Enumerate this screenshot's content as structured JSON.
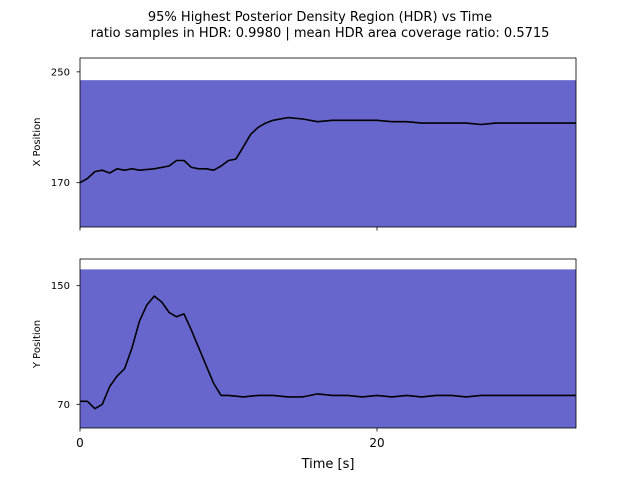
{
  "figure": {
    "title_line1": "95% Highest Posterior Density Region (HDR) vs Time",
    "title_line2": "ratio samples in HDR: 0.9980 | mean HDR area coverage ratio: 0.5715"
  },
  "colors": {
    "hdr_fill": "#6666cc",
    "trajectory": "#000000"
  },
  "chart_data": [
    {
      "type": "area",
      "panel": "top",
      "ylabel": "X Position",
      "xlim": [
        0,
        33.4
      ],
      "ylim": [
        138,
        260
      ],
      "yticks": [
        170,
        250
      ],
      "xticks": [
        0,
        20
      ],
      "hdr_band": {
        "x": [
          0,
          33.4
        ],
        "lower": 138,
        "upper": 244
      },
      "series": [
        {
          "x": [
            0,
            0.5,
            1.0,
            1.5,
            2.0,
            2.5,
            3.0,
            3.5,
            4.0,
            5.0,
            6.0,
            6.5,
            7.0,
            7.5,
            8.0,
            8.5,
            9.0,
            9.5,
            10.0,
            10.5,
            11.0,
            11.5,
            12.0,
            12.5,
            13.0,
            14.0,
            15.0,
            16.0,
            17.0,
            18.0,
            19.0,
            20.0,
            21.0,
            22.0,
            23.0,
            24.0,
            25.0,
            26.0,
            27.0,
            28.0,
            29.0,
            30.0,
            31.0,
            32.0,
            33.4
          ],
          "values": [
            170,
            173,
            178,
            179,
            177,
            180,
            179,
            180,
            179,
            180,
            182,
            186,
            186,
            181,
            180,
            180,
            179,
            182,
            186,
            187,
            196,
            205,
            210,
            213,
            215,
            217,
            216,
            214,
            215,
            215,
            215,
            215,
            214,
            214,
            213,
            213,
            213,
            213,
            212,
            213,
            213,
            213,
            213,
            213,
            213
          ]
        }
      ]
    },
    {
      "type": "area",
      "panel": "bottom",
      "ylabel": "Y Position",
      "xlim": [
        0,
        33.4
      ],
      "ylim": [
        54,
        168
      ],
      "yticks": [
        70,
        150
      ],
      "xticks": [
        0,
        20
      ],
      "xlabel": "Time [s]",
      "hdr_band": {
        "x": [
          0,
          33.4
        ],
        "lower": 54,
        "upper": 161
      },
      "series": [
        {
          "x": [
            0,
            0.5,
            1.0,
            1.5,
            2.0,
            2.5,
            3.0,
            3.5,
            4.0,
            4.5,
            5.0,
            5.5,
            6.0,
            6.5,
            7.0,
            7.5,
            8.0,
            8.5,
            9.0,
            9.5,
            10.0,
            11.0,
            12.0,
            13.0,
            14.0,
            15.0,
            16.0,
            17.0,
            18.0,
            19.0,
            20.0,
            21.0,
            22.0,
            23.0,
            24.0,
            25.0,
            26.0,
            27.0,
            28.0,
            29.0,
            30.0,
            31.0,
            32.0,
            33.4
          ],
          "values": [
            72,
            72,
            67,
            70,
            82,
            89,
            94,
            108,
            126,
            137,
            143,
            139,
            132,
            129,
            131,
            120,
            108,
            96,
            84,
            76,
            76,
            75,
            76,
            76,
            75,
            75,
            77,
            76,
            76,
            75,
            76,
            75,
            76,
            75,
            76,
            76,
            75,
            76,
            76,
            76,
            76,
            76,
            76,
            76
          ]
        }
      ]
    }
  ]
}
